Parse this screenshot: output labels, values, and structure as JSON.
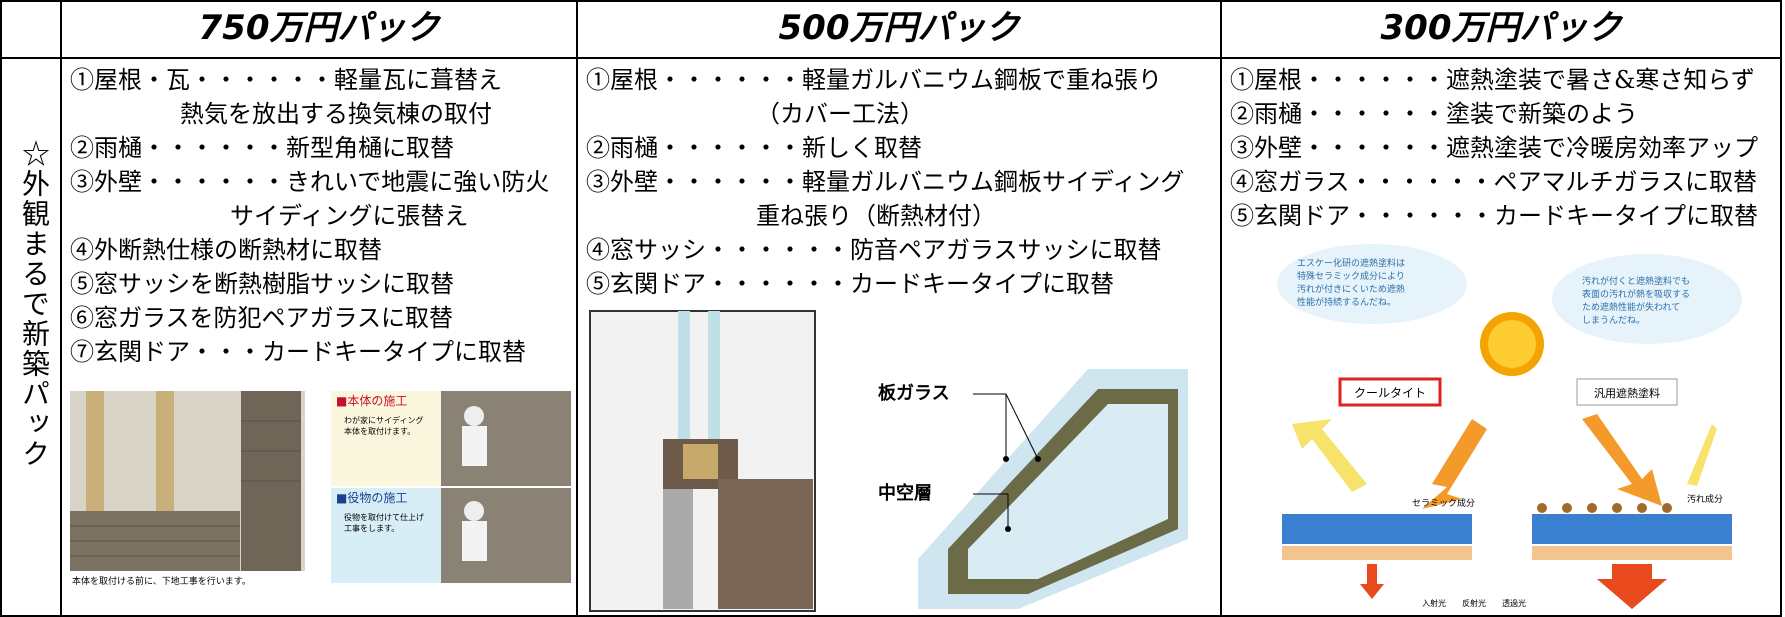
{
  "header": {
    "columns": [
      "750万円パック",
      "500万円パック",
      "300万円パック"
    ]
  },
  "side_label": "☆外観まるで新築パック",
  "packs": [
    {
      "lines": [
        "①屋根・瓦・・・・・・軽量瓦に葺替え",
        "熱気を放出する換気棟の取付",
        "②雨樋・・・・・・新型角樋に取替",
        "③外壁・・・・・・きれいで地震に強い防火",
        "サイディングに張替え",
        "④外断熱仕様の断熱材に取替",
        "⑤窓サッシを断熱樹脂サッシに取替",
        "⑥窓ガラスを防犯ペアガラスに取替",
        "⑦玄関ドア・・・カードキータイプに取替"
      ],
      "image_texts": [
        "本体を取付ける前に、下地工事を行います。",
        "■本体の施工",
        "わが家にサイディング",
        "本体を取付けます。",
        "■役物の施工",
        "役物を取付けて仕上げ",
        "工事をします。"
      ]
    },
    {
      "lines": [
        "①屋根・・・・・・軽量ガルバニウム鋼板で重ね張り",
        "（カバー工法）",
        "②雨樋・・・・・・新しく取替",
        "③外壁・・・・・・軽量ガルバニウム鋼板サイディング",
        "重ね張り（断熱材付）",
        "④窓サッシ・・・・・・防音ペアガラスサッシに取替",
        "⑤玄関ドア・・・・・・カードキータイプに取替"
      ],
      "image_texts": [
        "板ガラス",
        "中空層"
      ]
    },
    {
      "lines": [
        "①屋根・・・・・・遮熱塗装で暑さ&寒さ知らず",
        "②雨樋・・・・・・塗装で新築のよう",
        "③外壁・・・・・・遮熱塗装で冷暖房効率アップ",
        "④窓ガラス・・・・・・ペアマルチガラスに取替",
        "⑤玄関ドア・・・・・・カードキータイプに取替"
      ],
      "image_texts": [
        "エスケー化研の遮熱塗料は",
        "特殊セラミック成分により",
        "汚れが付きにくいため遮熱",
        "性能が持続するんだね。",
        "汚れが付くと遮熱塗料でも",
        "表面の汚れが熱を吸収する",
        "ため遮熱性能が失われて",
        "しまうんだね。",
        "クールタイト",
        "汎用遮熱塗料",
        "セラミック成分",
        "汚れ成分",
        "入射光",
        "反射光",
        "透過光"
      ]
    }
  ]
}
